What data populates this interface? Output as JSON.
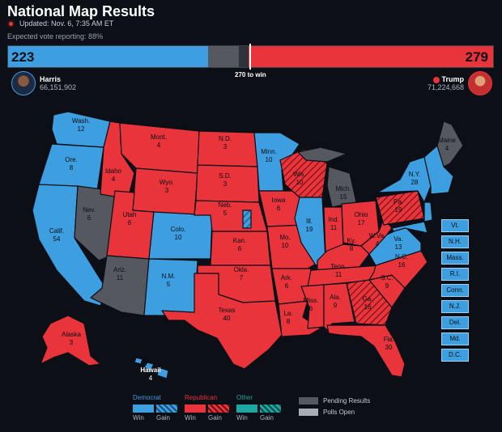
{
  "header": {
    "title": "National Map Results",
    "updated": "Updated: Nov. 6, 7:35 AM ET",
    "reporting": "Expected vote reporting: 88%"
  },
  "totals": {
    "dem_ev": "223",
    "rep_ev": "279",
    "win_label": "270 to win"
  },
  "candidates": {
    "harris": {
      "name": "Harris",
      "votes": "66,151,902"
    },
    "trump": {
      "name": "Trump",
      "votes": "71,224,668"
    }
  },
  "colors": {
    "dem_win": "#3d9ee0",
    "rep_win": "#e8343a",
    "other_win": "#1fa6a0",
    "pending": "#55585e",
    "polls_open": "#a9adb5",
    "background": "#0c0f16"
  },
  "states": [
    {
      "abbr": "Wash.",
      "ev": "12",
      "status": "dem"
    },
    {
      "abbr": "Ore.",
      "ev": "8",
      "status": "dem"
    },
    {
      "abbr": "Calif.",
      "ev": "54",
      "status": "dem"
    },
    {
      "abbr": "Nev.",
      "ev": "6",
      "status": "pending"
    },
    {
      "abbr": "Idaho",
      "ev": "4",
      "status": "rep"
    },
    {
      "abbr": "Mont.",
      "ev": "4",
      "status": "rep"
    },
    {
      "abbr": "Wyo.",
      "ev": "3",
      "status": "rep"
    },
    {
      "abbr": "Utah",
      "ev": "6",
      "status": "rep"
    },
    {
      "abbr": "Ariz.",
      "ev": "11",
      "status": "pending"
    },
    {
      "abbr": "Colo.",
      "ev": "10",
      "status": "dem"
    },
    {
      "abbr": "N.M.",
      "ev": "5",
      "status": "dem"
    },
    {
      "abbr": "N.D.",
      "ev": "3",
      "status": "rep"
    },
    {
      "abbr": "S.D.",
      "ev": "3",
      "status": "rep"
    },
    {
      "abbr": "Neb.",
      "ev": "5",
      "status": "rep"
    },
    {
      "abbr": "Kan.",
      "ev": "6",
      "status": "rep"
    },
    {
      "abbr": "Okla.",
      "ev": "7",
      "status": "rep"
    },
    {
      "abbr": "Texas",
      "ev": "40",
      "status": "rep"
    },
    {
      "abbr": "Minn.",
      "ev": "10",
      "status": "dem"
    },
    {
      "abbr": "Iowa",
      "ev": "6",
      "status": "rep"
    },
    {
      "abbr": "Mo.",
      "ev": "10",
      "status": "rep"
    },
    {
      "abbr": "Ark.",
      "ev": "6",
      "status": "rep"
    },
    {
      "abbr": "La.",
      "ev": "8",
      "status": "rep"
    },
    {
      "abbr": "Wis.",
      "ev": "10",
      "status": "rep-gain"
    },
    {
      "abbr": "Ill.",
      "ev": "19",
      "status": "dem"
    },
    {
      "abbr": "Mich.",
      "ev": "15",
      "status": "pending"
    },
    {
      "abbr": "Ind.",
      "ev": "11",
      "status": "rep"
    },
    {
      "abbr": "Ohio",
      "ev": "17",
      "status": "rep"
    },
    {
      "abbr": "Ky.",
      "ev": "8",
      "status": "rep"
    },
    {
      "abbr": "Tenn.",
      "ev": "11",
      "status": "rep"
    },
    {
      "abbr": "Miss.",
      "ev": "6",
      "status": "rep"
    },
    {
      "abbr": "Ala.",
      "ev": "9",
      "status": "rep"
    },
    {
      "abbr": "Ga.",
      "ev": "16",
      "status": "rep-gain"
    },
    {
      "abbr": "Fla.",
      "ev": "30",
      "status": "rep"
    },
    {
      "abbr": "S.C.",
      "ev": "9",
      "status": "rep"
    },
    {
      "abbr": "N.C.",
      "ev": "16",
      "status": "rep"
    },
    {
      "abbr": "Va.",
      "ev": "13",
      "status": "dem"
    },
    {
      "abbr": "W.Va.",
      "ev": "4",
      "status": "rep"
    },
    {
      "abbr": "Pa.",
      "ev": "19",
      "status": "rep-gain"
    },
    {
      "abbr": "N.Y.",
      "ev": "28",
      "status": "dem"
    },
    {
      "abbr": "Maine",
      "ev": "4",
      "status": "pending"
    },
    {
      "abbr": "Alaska",
      "ev": "3",
      "status": "rep"
    },
    {
      "abbr": "Hawaii",
      "ev": "4",
      "status": "dem"
    }
  ],
  "small_states": [
    "Vt.",
    "N.H.",
    "Mass.",
    "R.I.",
    "Conn.",
    "N.J.",
    "Del.",
    "Md.",
    "D.C."
  ],
  "legend": {
    "democrat": "Democrat",
    "republican": "Republican",
    "other": "Other",
    "win": "Win",
    "gain": "Gain",
    "pending": "Pending Results",
    "polls_open": "Polls Open"
  }
}
